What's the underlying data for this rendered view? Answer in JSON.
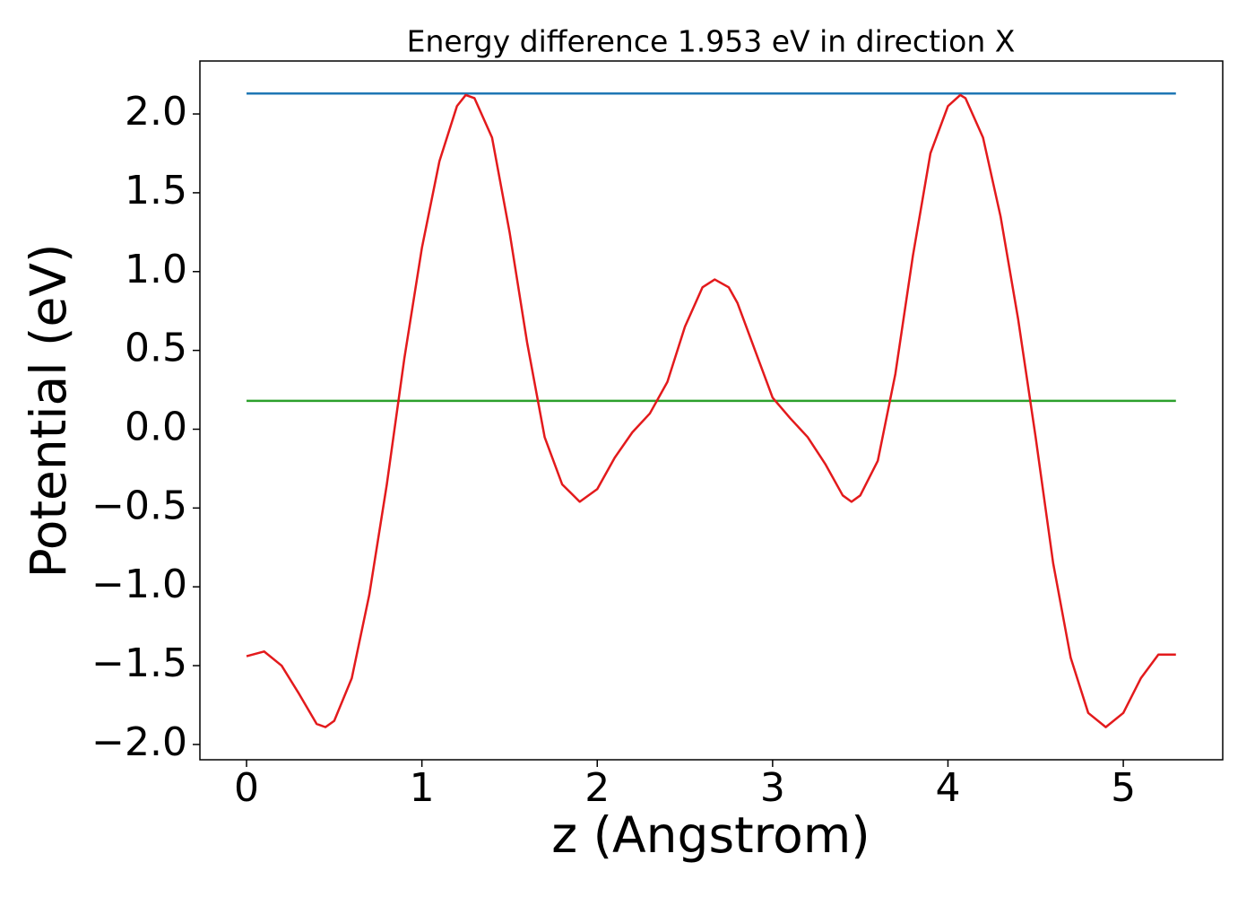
{
  "chart_data": {
    "type": "line",
    "title": "Energy difference 1.953 eV in direction X",
    "x_label": "z (Angstrom)",
    "y_label": "Potential (eV)",
    "xlim": [
      -0.266,
      5.567
    ],
    "ylim": [
      -2.097,
      2.336
    ],
    "xticks": [
      0,
      1,
      2,
      3,
      4,
      5
    ],
    "yticks": [
      {
        "value": -2.0,
        "label": "−2.0"
      },
      {
        "value": -1.5,
        "label": "−1.5"
      },
      {
        "value": -1.0,
        "label": "−1.0"
      },
      {
        "value": -0.5,
        "label": "−0.5"
      },
      {
        "value": 0.0,
        "label": "0.0"
      },
      {
        "value": 0.5,
        "label": "0.5"
      },
      {
        "value": 1.0,
        "label": "1.0"
      },
      {
        "value": 1.5,
        "label": "1.5"
      },
      {
        "value": 2.0,
        "label": "2.0"
      }
    ],
    "grid": false,
    "series": [
      {
        "color": "#1f77b4",
        "x": [
          0,
          5.3
        ],
        "values": [
          2.13,
          2.13
        ]
      },
      {
        "color": "#2ca02c",
        "x": [
          0,
          5.3
        ],
        "values": [
          0.18,
          0.18
        ]
      },
      {
        "color": "#e31a1c",
        "x": [
          0,
          0.1,
          0.2,
          0.3,
          0.4,
          0.45,
          0.5,
          0.6,
          0.7,
          0.8,
          0.9,
          1.0,
          1.1,
          1.2,
          1.25,
          1.3,
          1.4,
          1.5,
          1.6,
          1.7,
          1.8,
          1.9,
          2.0,
          2.1,
          2.2,
          2.3,
          2.4,
          2.5,
          2.6,
          2.67,
          2.75,
          2.8,
          2.9,
          3.0,
          3.1,
          3.2,
          3.3,
          3.4,
          3.45,
          3.5,
          3.6,
          3.7,
          3.8,
          3.9,
          4.0,
          4.07,
          4.1,
          4.2,
          4.3,
          4.4,
          4.5,
          4.6,
          4.7,
          4.8,
          4.9,
          5.0,
          5.1,
          5.2,
          5.3
        ],
        "values": [
          -1.44,
          -1.41,
          -1.5,
          -1.68,
          -1.87,
          -1.89,
          -1.85,
          -1.58,
          -1.05,
          -0.35,
          0.45,
          1.15,
          1.7,
          2.05,
          2.12,
          2.1,
          1.85,
          1.25,
          0.55,
          -0.05,
          -0.35,
          -0.46,
          -0.38,
          -0.18,
          -0.02,
          0.1,
          0.3,
          0.65,
          0.9,
          0.95,
          0.9,
          0.8,
          0.5,
          0.2,
          0.07,
          -0.05,
          -0.22,
          -0.42,
          -0.46,
          -0.42,
          -0.2,
          0.35,
          1.1,
          1.75,
          2.05,
          2.12,
          2.1,
          1.85,
          1.35,
          0.7,
          -0.05,
          -0.85,
          -1.45,
          -1.8,
          -1.89,
          -1.8,
          -1.58,
          -1.43,
          -1.43
        ]
      }
    ]
  }
}
